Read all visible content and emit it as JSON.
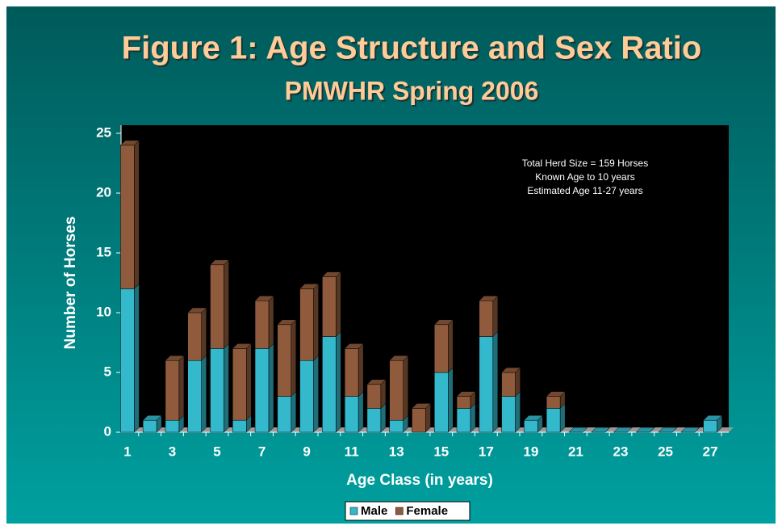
{
  "chart_data": {
    "type": "stacked_bar",
    "title": "Figure 1: Age Structure and Sex Ratio",
    "subtitle": "PMWHR Spring 2006",
    "x_label": "Age Class (in years)",
    "y_label": "Number of Horses",
    "annotations": [
      "Total Herd Size = 159 Horses",
      "Known Age to 10 years",
      "Estimated Age 11-27 years"
    ],
    "categories": [
      1,
      null,
      3,
      null,
      5,
      null,
      7,
      null,
      9,
      null,
      11,
      null,
      13,
      null,
      15,
      null,
      17,
      null,
      19,
      null,
      21,
      null,
      23,
      null,
      25,
      null,
      27
    ],
    "series": [
      {
        "name": "Male",
        "color": "#33b8cc",
        "values": [
          12,
          1,
          1,
          6,
          7,
          1,
          7,
          3,
          6,
          8,
          3,
          2,
          1,
          0,
          5,
          2,
          8,
          3,
          1,
          2,
          0,
          0,
          0,
          0,
          0,
          0,
          1
        ]
      },
      {
        "name": "Female",
        "color": "#8f5b3c",
        "values": [
          12,
          0,
          5,
          4,
          7,
          6,
          4,
          6,
          6,
          5,
          4,
          2,
          5,
          2,
          4,
          1,
          3,
          2,
          0,
          1,
          0,
          0,
          0,
          0,
          0,
          0,
          0
        ]
      }
    ],
    "ylim": [
      0,
      25
    ],
    "yticks": [
      0,
      5,
      10,
      15,
      20,
      25
    ],
    "legend": "bottom"
  }
}
